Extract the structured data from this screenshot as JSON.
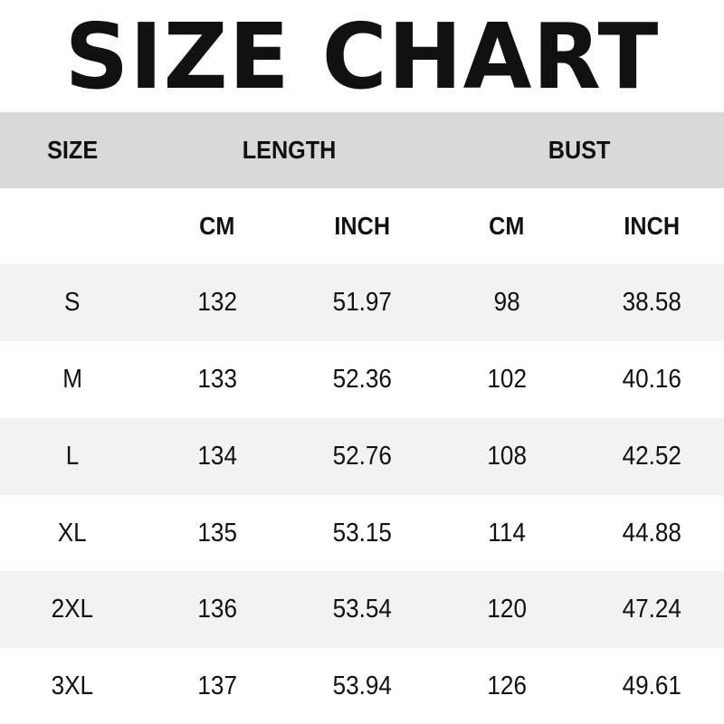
{
  "title": "SIZE CHART",
  "header": {
    "size": "SIZE",
    "length": "LENGTH",
    "bust": "BUST"
  },
  "subheader": {
    "length_cm": "CM",
    "length_inch": "INCH",
    "bust_cm": "CM",
    "bust_inch": "INCH"
  },
  "colors": {
    "header_bg": "#d9d9d9",
    "stripe_bg": "#f2f2f2",
    "text": "#111111"
  },
  "rows": [
    {
      "size": "S",
      "length_cm": "132",
      "length_inch": "51.97",
      "bust_cm": "98",
      "bust_inch": "38.58"
    },
    {
      "size": "M",
      "length_cm": "133",
      "length_inch": "52.36",
      "bust_cm": "102",
      "bust_inch": "40.16"
    },
    {
      "size": "L",
      "length_cm": "134",
      "length_inch": "52.76",
      "bust_cm": "108",
      "bust_inch": "42.52"
    },
    {
      "size": "XL",
      "length_cm": "135",
      "length_inch": "53.15",
      "bust_cm": "114",
      "bust_inch": "44.88"
    },
    {
      "size": "2XL",
      "length_cm": "136",
      "length_inch": "53.54",
      "bust_cm": "120",
      "bust_inch": "47.24"
    },
    {
      "size": "3XL",
      "length_cm": "137",
      "length_inch": "53.94",
      "bust_cm": "126",
      "bust_inch": "49.61"
    }
  ]
}
